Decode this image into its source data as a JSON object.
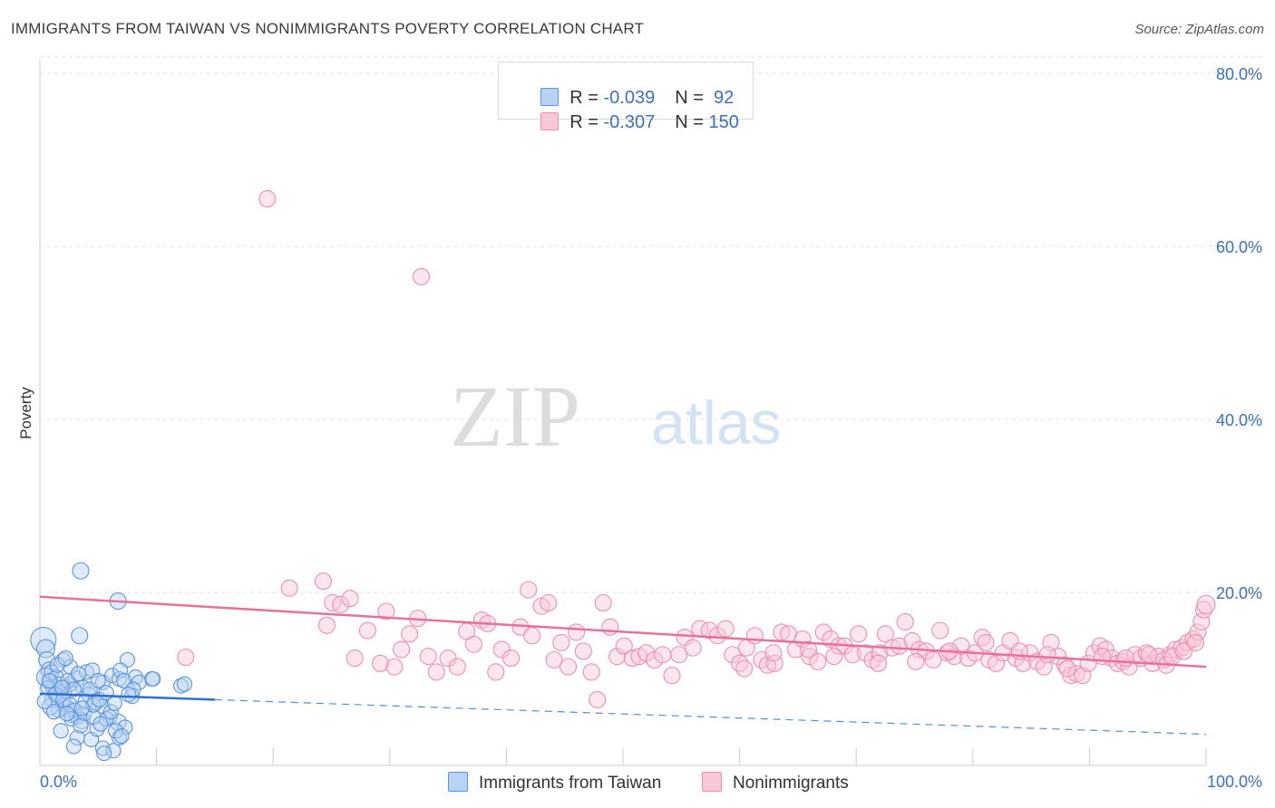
{
  "title": "IMMIGRANTS FROM TAIWAN VS NONIMMIGRANTS POVERTY CORRELATION CHART",
  "source": "Source: ZipAtlas.com",
  "watermark": {
    "zip": "ZIP",
    "atlas": "atlas"
  },
  "colors": {
    "blue": "#5b93e0",
    "blue_fill": "#b9d3f5",
    "blue_line": "#2f6fcf",
    "pink": "#ee8fb0",
    "pink_fill": "#f8c7d8",
    "pink_line": "#e8709b",
    "axis_label": "#3a6fc4",
    "grid": "#e2e2e2"
  },
  "legend": {
    "rows": [
      {
        "r_label": "R = ",
        "r_value": "-0.039",
        "n_label": "N = ",
        "n_value": " 92"
      },
      {
        "r_label": "R = ",
        "r_value": "-0.307",
        "n_label": "N = ",
        "n_value": "150"
      }
    ]
  },
  "chart_data": {
    "type": "scatter",
    "xlabel": "",
    "ylabel": "Poverty",
    "xlim": [
      0,
      100
    ],
    "ylim": [
      0,
      80
    ],
    "x_ticks": [
      "0.0%",
      "100.0%"
    ],
    "y_ticks": [
      {
        "value": 20,
        "label": "20.0%"
      },
      {
        "value": 40,
        "label": "40.0%"
      },
      {
        "value": 60,
        "label": "60.0%"
      },
      {
        "value": 80,
        "label": "80.0%"
      }
    ],
    "grid": true,
    "series": [
      {
        "name": "Immigrants from Taiwan",
        "color": "blue",
        "trend": {
          "x0": 0,
          "y0": 8.3,
          "x1": 15,
          "y1": 7.6,
          "dash_x1": 100,
          "dash_y1": 3.6
        },
        "points": [
          [
            0.3,
            14.5,
            13
          ],
          [
            0.5,
            13.5,
            9
          ],
          [
            0.6,
            12.2,
            8
          ],
          [
            0.8,
            11.0,
            8
          ],
          [
            0.5,
            10.2,
            9
          ],
          [
            0.9,
            9.6,
            8
          ],
          [
            1.2,
            9.0,
            8
          ],
          [
            1.5,
            8.4,
            7
          ],
          [
            1.1,
            7.6,
            8
          ],
          [
            1.9,
            7.2,
            7
          ],
          [
            2.3,
            6.6,
            8
          ],
          [
            2.8,
            6.0,
            9
          ],
          [
            3.2,
            5.6,
            7
          ],
          [
            3.6,
            5.2,
            8
          ],
          [
            1.6,
            6.4,
            7
          ],
          [
            0.9,
            6.8,
            8
          ],
          [
            2.1,
            8.6,
            7
          ],
          [
            2.6,
            9.4,
            7
          ],
          [
            3.1,
            10.0,
            8
          ],
          [
            3.7,
            9.0,
            7
          ],
          [
            4.2,
            8.2,
            7
          ],
          [
            4.8,
            7.4,
            8
          ],
          [
            5.4,
            6.8,
            7
          ],
          [
            6.0,
            5.6,
            7
          ],
          [
            6.7,
            5.0,
            8
          ],
          [
            7.3,
            4.4,
            7
          ],
          [
            3.4,
            15.0,
            8
          ],
          [
            3.5,
            22.5,
            8
          ],
          [
            6.7,
            19.0,
            8
          ],
          [
            7.5,
            12.2,
            7
          ],
          [
            8.2,
            10.2,
            7
          ],
          [
            9.6,
            10.0,
            7
          ],
          [
            12.1,
            9.2,
            7
          ],
          [
            12.4,
            9.4,
            7
          ],
          [
            2.0,
            12.2,
            7
          ],
          [
            2.6,
            11.4,
            7
          ],
          [
            4.0,
            10.8,
            7
          ],
          [
            5.4,
            9.6,
            7
          ],
          [
            6.2,
            10.4,
            7
          ],
          [
            6.8,
            10.0,
            7
          ],
          [
            7.9,
            8.0,
            7
          ],
          [
            8.5,
            9.6,
            7
          ],
          [
            9.7,
            10.0,
            7
          ],
          [
            1.8,
            4.0,
            7
          ],
          [
            3.2,
            3.2,
            7
          ],
          [
            4.4,
            3.0,
            7
          ],
          [
            5.4,
            2.0,
            7
          ],
          [
            6.8,
            3.2,
            7
          ],
          [
            6.3,
            1.7,
            7
          ],
          [
            4.9,
            4.2,
            7
          ],
          [
            5.7,
            5.4,
            7
          ],
          [
            1.0,
            10.8,
            7
          ],
          [
            1.4,
            10.2,
            7
          ],
          [
            1.7,
            9.4,
            7
          ],
          [
            2.4,
            9.8,
            7
          ],
          [
            2.9,
            8.8,
            7
          ],
          [
            0.7,
            9.0,
            7
          ],
          [
            1.3,
            8.2,
            7
          ],
          [
            2.0,
            7.6,
            7
          ],
          [
            2.6,
            7.0,
            7
          ],
          [
            3.0,
            6.4,
            7
          ],
          [
            3.8,
            6.0,
            7
          ],
          [
            4.6,
            5.6,
            7
          ],
          [
            5.2,
            4.8,
            7
          ],
          [
            6.5,
            4.0,
            7
          ],
          [
            7.0,
            3.4,
            7
          ],
          [
            3.9,
            7.4,
            7
          ],
          [
            4.6,
            7.0,
            7
          ],
          [
            1.5,
            11.6,
            7
          ],
          [
            2.2,
            12.4,
            7
          ],
          [
            3.3,
            10.6,
            7
          ],
          [
            4.5,
            11.0,
            7
          ],
          [
            6.9,
            11.0,
            7
          ],
          [
            7.2,
            9.8,
            7
          ],
          [
            8.0,
            8.8,
            7
          ],
          [
            6.1,
            6.2,
            7
          ],
          [
            5.1,
            7.6,
            7
          ],
          [
            2.7,
            5.4,
            7
          ],
          [
            3.5,
            4.6,
            7
          ],
          [
            1.2,
            6.2,
            7
          ],
          [
            0.4,
            7.4,
            7
          ],
          [
            0.8,
            9.8,
            7
          ],
          [
            1.9,
            9.0,
            7
          ],
          [
            2.3,
            6.0,
            7
          ],
          [
            3.6,
            6.6,
            7
          ],
          [
            4.3,
            8.8,
            7
          ],
          [
            5.0,
            9.8,
            7
          ],
          [
            5.7,
            8.4,
            7
          ],
          [
            6.4,
            7.2,
            7
          ],
          [
            7.6,
            8.2,
            7
          ],
          [
            2.9,
            2.2,
            7
          ],
          [
            5.5,
            1.4,
            7
          ]
        ]
      },
      {
        "name": "Nonimmigrants",
        "color": "pink",
        "trend": {
          "x0": 0,
          "y0": 19.5,
          "x1": 100,
          "y1": 11.4
        },
        "points": [
          [
            19.5,
            65.5,
            8
          ],
          [
            32.7,
            56.5,
            8
          ],
          [
            12.5,
            12.5,
            8
          ],
          [
            21.4,
            20.5,
            8
          ],
          [
            24.3,
            21.3,
            8
          ],
          [
            25.1,
            18.8,
            8
          ],
          [
            24.6,
            16.2,
            8
          ],
          [
            25.8,
            18.6,
            8
          ],
          [
            26.6,
            19.3,
            8
          ],
          [
            27.0,
            12.4,
            8
          ],
          [
            28.1,
            15.6,
            8
          ],
          [
            29.2,
            11.8,
            8
          ],
          [
            29.7,
            17.8,
            8
          ],
          [
            30.4,
            11.4,
            8
          ],
          [
            31.0,
            13.4,
            8
          ],
          [
            31.7,
            15.2,
            8
          ],
          [
            32.4,
            17.0,
            8
          ],
          [
            33.3,
            12.6,
            8
          ],
          [
            34.0,
            10.8,
            8
          ],
          [
            35.0,
            12.4,
            8
          ],
          [
            35.8,
            11.4,
            8
          ],
          [
            36.6,
            15.5,
            8
          ],
          [
            37.2,
            14.0,
            8
          ],
          [
            37.9,
            16.8,
            8
          ],
          [
            38.4,
            16.4,
            8
          ],
          [
            39.1,
            10.8,
            8
          ],
          [
            39.6,
            13.4,
            8
          ],
          [
            40.4,
            12.4,
            8
          ],
          [
            41.2,
            16.0,
            8
          ],
          [
            41.9,
            20.3,
            8
          ],
          [
            42.2,
            15.0,
            8
          ],
          [
            43.0,
            18.4,
            8
          ],
          [
            43.6,
            18.8,
            8
          ],
          [
            44.1,
            12.2,
            8
          ],
          [
            44.7,
            14.2,
            8
          ],
          [
            45.3,
            11.4,
            8
          ],
          [
            46.0,
            15.4,
            8
          ],
          [
            46.6,
            13.2,
            8
          ],
          [
            47.3,
            10.8,
            8
          ],
          [
            47.8,
            7.6,
            8
          ],
          [
            48.3,
            18.8,
            8
          ],
          [
            48.9,
            16.0,
            8
          ],
          [
            49.5,
            12.6,
            8
          ],
          [
            50.1,
            13.8,
            8
          ],
          [
            50.8,
            12.4,
            8
          ],
          [
            51.4,
            12.6,
            8
          ],
          [
            52.0,
            13.0,
            8
          ],
          [
            52.7,
            12.2,
            8
          ],
          [
            53.4,
            12.8,
            8
          ],
          [
            54.2,
            10.4,
            8
          ],
          [
            54.8,
            12.8,
            8
          ],
          [
            55.3,
            14.8,
            8
          ],
          [
            56.0,
            13.6,
            8
          ],
          [
            56.6,
            15.8,
            8
          ],
          [
            57.4,
            15.6,
            8
          ],
          [
            58.1,
            15.0,
            8
          ],
          [
            58.8,
            15.8,
            8
          ],
          [
            59.4,
            12.8,
            8
          ],
          [
            60.0,
            11.8,
            8
          ],
          [
            60.6,
            13.6,
            8
          ],
          [
            61.3,
            15.0,
            8
          ],
          [
            61.9,
            12.2,
            8
          ],
          [
            62.4,
            11.6,
            8
          ],
          [
            63.0,
            11.8,
            8
          ],
          [
            63.6,
            15.4,
            8
          ],
          [
            64.2,
            15.2,
            8
          ],
          [
            64.8,
            13.4,
            8
          ],
          [
            65.4,
            14.6,
            8
          ],
          [
            66.0,
            12.6,
            8
          ],
          [
            66.7,
            12.0,
            8
          ],
          [
            67.2,
            15.4,
            8
          ],
          [
            67.8,
            14.6,
            8
          ],
          [
            68.5,
            13.8,
            8
          ],
          [
            69.0,
            13.8,
            8
          ],
          [
            69.7,
            12.8,
            8
          ],
          [
            70.2,
            15.2,
            8
          ],
          [
            70.8,
            13.0,
            8
          ],
          [
            71.4,
            12.2,
            8
          ],
          [
            72.0,
            13.0,
            8
          ],
          [
            72.5,
            15.2,
            8
          ],
          [
            73.1,
            13.6,
            8
          ],
          [
            73.7,
            13.8,
            8
          ],
          [
            74.2,
            16.6,
            8
          ],
          [
            74.8,
            14.4,
            8
          ],
          [
            75.4,
            13.4,
            8
          ],
          [
            76.0,
            13.2,
            8
          ],
          [
            76.6,
            12.2,
            8
          ],
          [
            77.2,
            15.6,
            8
          ],
          [
            77.8,
            13.0,
            8
          ],
          [
            78.4,
            12.6,
            8
          ],
          [
            79.0,
            13.8,
            8
          ],
          [
            79.6,
            12.4,
            8
          ],
          [
            80.2,
            13.0,
            8
          ],
          [
            80.8,
            14.8,
            8
          ],
          [
            81.4,
            12.2,
            8
          ],
          [
            82.0,
            11.8,
            8
          ],
          [
            82.6,
            13.0,
            8
          ],
          [
            83.2,
            14.4,
            8
          ],
          [
            83.7,
            12.4,
            8
          ],
          [
            84.3,
            11.8,
            8
          ],
          [
            84.9,
            13.0,
            8
          ],
          [
            85.5,
            12.0,
            8
          ],
          [
            86.1,
            11.4,
            8
          ],
          [
            86.7,
            14.2,
            8
          ],
          [
            87.3,
            12.6,
            8
          ],
          [
            87.9,
            11.6,
            8
          ],
          [
            88.4,
            10.4,
            8
          ],
          [
            88.9,
            10.6,
            8
          ],
          [
            89.4,
            10.4,
            8
          ],
          [
            89.9,
            11.8,
            8
          ],
          [
            90.4,
            13.0,
            8
          ],
          [
            90.9,
            13.8,
            8
          ],
          [
            91.4,
            13.4,
            8
          ],
          [
            91.9,
            12.4,
            8
          ],
          [
            92.4,
            11.8,
            8
          ],
          [
            92.9,
            12.0,
            8
          ],
          [
            93.4,
            11.4,
            8
          ],
          [
            93.9,
            12.8,
            8
          ],
          [
            94.4,
            12.4,
            8
          ],
          [
            94.9,
            13.0,
            8
          ],
          [
            95.4,
            11.8,
            8
          ],
          [
            95.9,
            12.6,
            8
          ],
          [
            96.4,
            12.2,
            8
          ],
          [
            96.9,
            12.8,
            8
          ],
          [
            97.4,
            13.4,
            8
          ],
          [
            97.9,
            13.6,
            8
          ],
          [
            98.4,
            14.2,
            8
          ],
          [
            98.9,
            14.6,
            8
          ],
          [
            99.3,
            15.4,
            8
          ],
          [
            99.6,
            16.6,
            8
          ],
          [
            99.8,
            18.0,
            8
          ],
          [
            100.0,
            18.6,
            9
          ],
          [
            60.4,
            11.2,
            8
          ],
          [
            62.9,
            13.0,
            8
          ],
          [
            65.9,
            13.4,
            8
          ],
          [
            68.1,
            12.6,
            8
          ],
          [
            71.9,
            11.8,
            8
          ],
          [
            75.1,
            12.0,
            8
          ],
          [
            78.0,
            13.2,
            8
          ],
          [
            81.1,
            14.2,
            8
          ],
          [
            84.0,
            13.2,
            8
          ],
          [
            86.4,
            12.8,
            8
          ],
          [
            88.1,
            11.2,
            8
          ],
          [
            91.1,
            12.6,
            8
          ],
          [
            93.1,
            12.4,
            8
          ],
          [
            95.1,
            12.8,
            8
          ],
          [
            96.6,
            11.6,
            8
          ],
          [
            97.1,
            12.6,
            8
          ],
          [
            98.1,
            13.2,
            8
          ],
          [
            99.1,
            14.2,
            8
          ]
        ]
      }
    ]
  }
}
